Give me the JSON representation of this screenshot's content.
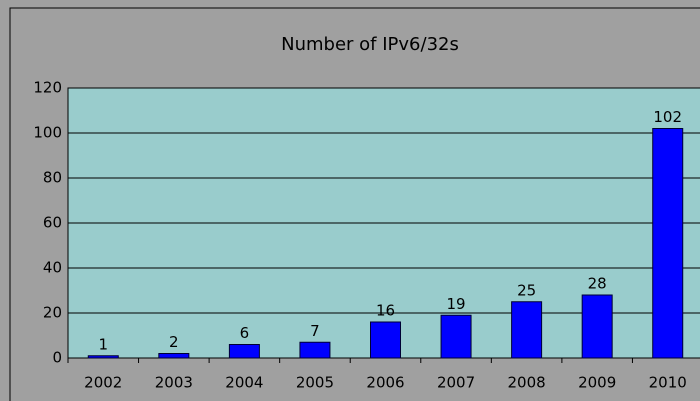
{
  "chart_data": {
    "type": "bar",
    "title": "Number of IPv6/32s",
    "categories": [
      "2002",
      "2003",
      "2004",
      "2005",
      "2006",
      "2007",
      "2008",
      "2009",
      "2010"
    ],
    "values": [
      1,
      2,
      6,
      7,
      16,
      19,
      25,
      28,
      102
    ],
    "color": "#0000ff",
    "plot_background": "#99cccc",
    "ylim": [
      0,
      120
    ],
    "yticks": [
      0,
      20,
      40,
      60,
      80,
      100,
      120
    ],
    "grid": true
  }
}
